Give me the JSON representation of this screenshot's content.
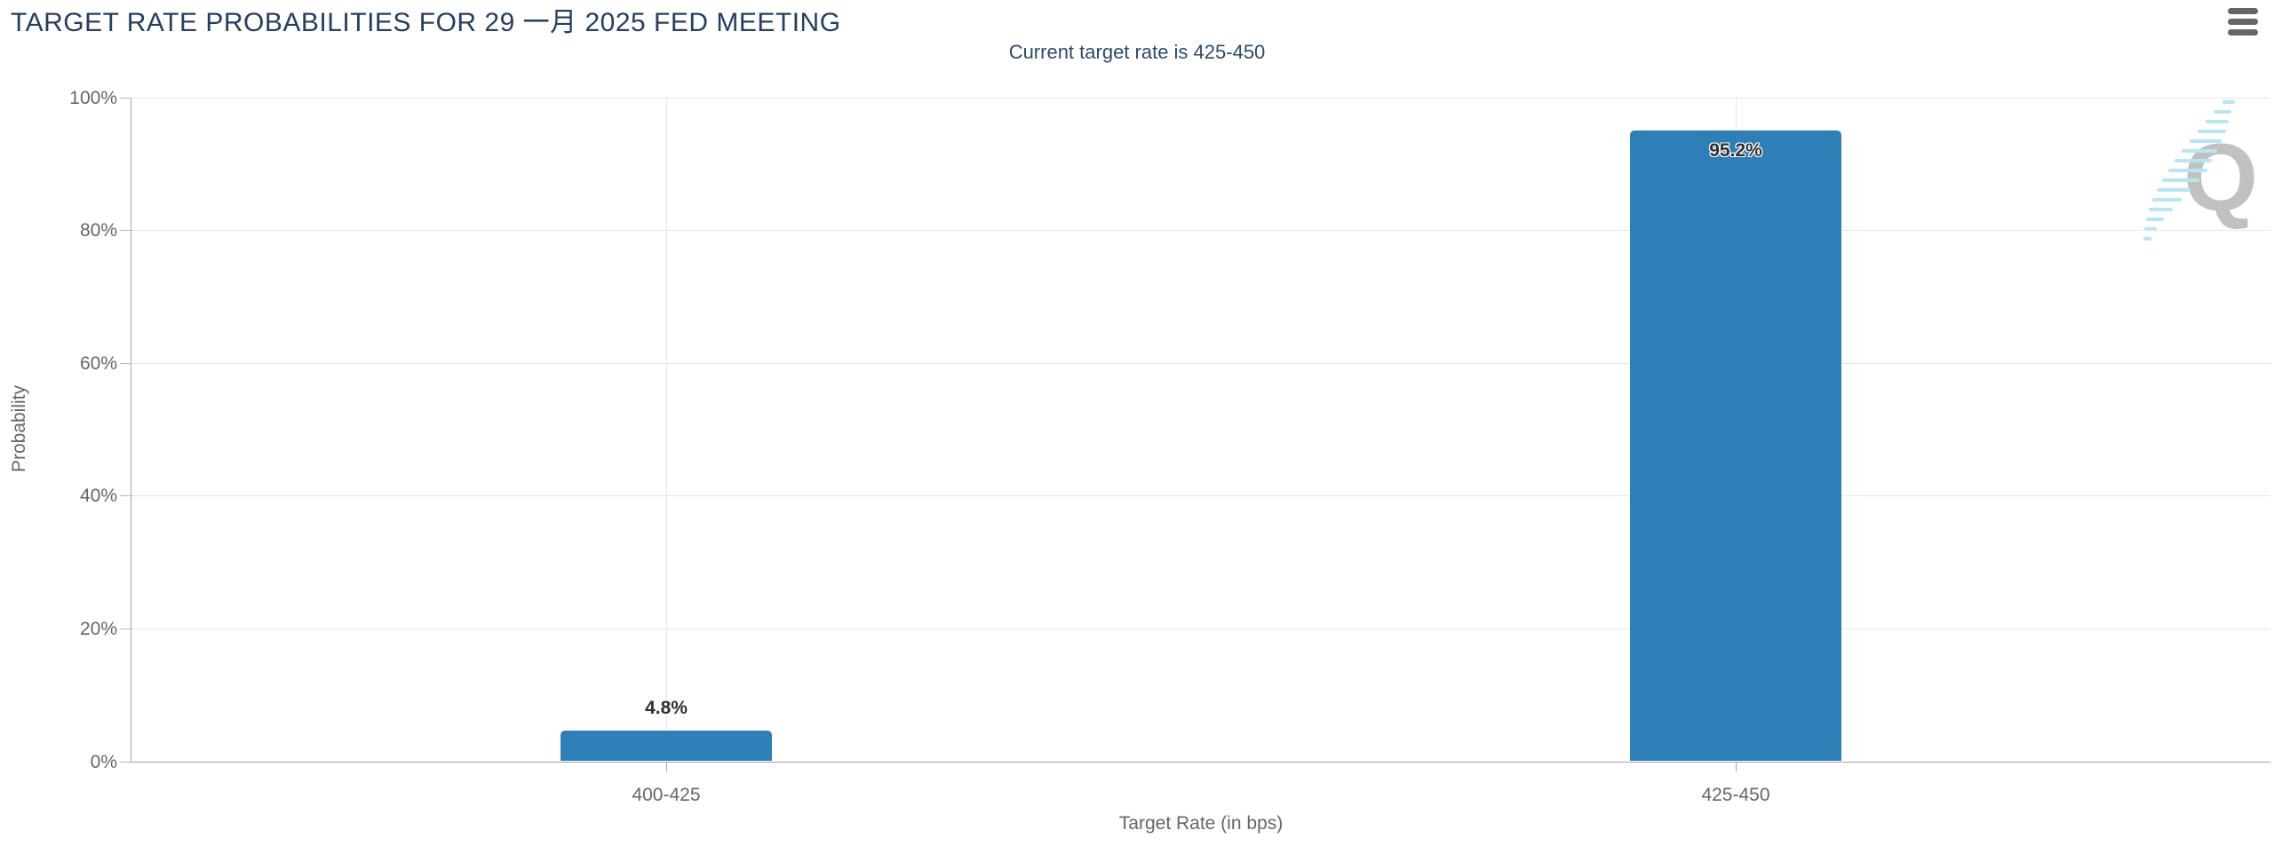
{
  "chart_data": {
    "type": "bar",
    "title": "TARGET RATE PROBABILITIES FOR 29 一月 2025 FED MEETING",
    "subtitle": "Current target rate is 425-450",
    "categories": [
      "400-425",
      "425-450"
    ],
    "values": [
      4.8,
      95.2
    ],
    "value_labels": [
      "4.8%",
      "95.2%"
    ],
    "xlabel": "Target Rate (in bps)",
    "ylabel": "Probability",
    "ylim": [
      0,
      100
    ],
    "ytick_interval": 20,
    "ytick_labels": [
      "0%",
      "20%",
      "40%",
      "60%",
      "80%",
      "100%"
    ],
    "grid": true,
    "legend": false,
    "bar_color": "#2e7eb7"
  },
  "toolbar": {
    "context_menu_icon": "hamburger-icon"
  },
  "watermark": {
    "letter": "Q"
  },
  "colors": {
    "title": "#253e63",
    "subtitle": "#2c4b6b",
    "bar": "#2e7eb7",
    "grid": "#e6e6e6",
    "axis_line": "#a3a3a3",
    "axis_text": "#666666",
    "data_label": "#2f2f2f",
    "menu_icon": "#666666",
    "watermark_q": "#c1c1c1",
    "watermark_dash": "#b7e5f3"
  }
}
